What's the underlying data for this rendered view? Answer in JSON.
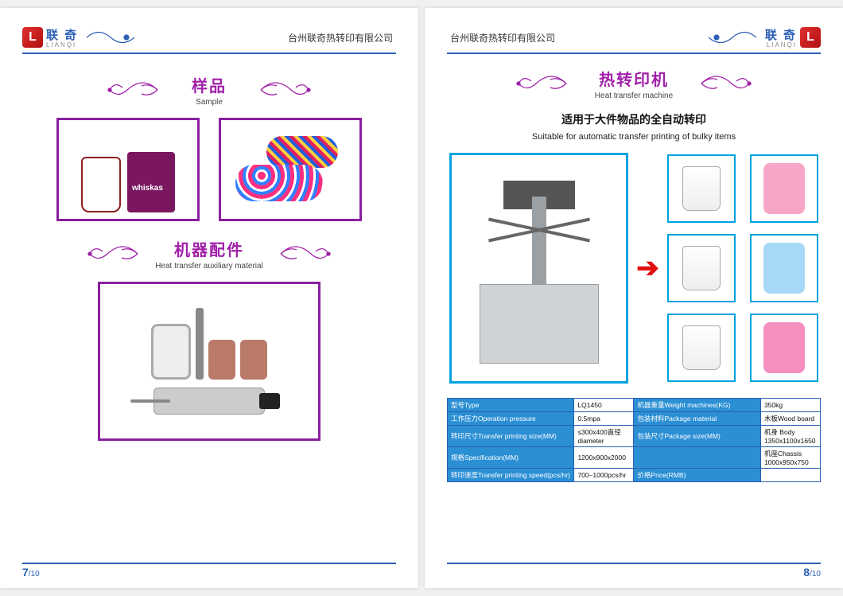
{
  "brand": {
    "logo_letter": "L",
    "name_cn": "联 奇",
    "name_en": "LIANQI"
  },
  "company_name": "台州联奇热转印有限公司",
  "colors": {
    "header_rule": "#2b5fb4",
    "purple_border": "#8a1fa0",
    "purple_text": "#a020a8",
    "cyan_border": "#00a3e0",
    "arrow_red": "#e01010",
    "table_header_bg": "#2b8fd4"
  },
  "page7": {
    "section1": {
      "title_cn": "样品",
      "title_en": "Sample"
    },
    "section2": {
      "title_cn": "机器配件",
      "title_en": "Heat transfer auxiliary material"
    },
    "photos": {
      "sample_left": "cups-and-whiskas-bin",
      "sample_right": "printed-bags",
      "aux_material": "rollers-heater-pneumatic-parts"
    },
    "page_number": "7",
    "page_total": "10"
  },
  "page8": {
    "section": {
      "title_cn": "热转印机",
      "title_en": "Heat transfer machine"
    },
    "subtitle_cn": "适用于大件物品的全自动转印",
    "subtitle_en": "Suitable for automatic transfer printing of bulky items",
    "machine_id": "heat-transfer-machine-LQ1450",
    "output_tiles": [
      {
        "id": "bucket-wrangi",
        "kind": "bucket",
        "color": "#ffffff"
      },
      {
        "id": "raincoat-pink",
        "kind": "raincoat",
        "color": "#f7a6c8"
      },
      {
        "id": "bucket-isaval",
        "kind": "bucket",
        "color": "#ffffff"
      },
      {
        "id": "raincoat-mickey-blue",
        "kind": "raincoat",
        "color": "#a6d8f7"
      },
      {
        "id": "bucket-prima",
        "kind": "bucket",
        "color": "#ffffff"
      },
      {
        "id": "raincoat-pink-pattern",
        "kind": "raincoat",
        "color": "#f48fc0"
      }
    ],
    "spec_table": {
      "rows": [
        {
          "k1": "型号Type",
          "v1": "LQ1450",
          "k2": "机器重量Weight machines(KG)",
          "v2": "350kg"
        },
        {
          "k1": "工作压力Operation pressure",
          "v1": "0.5mpa",
          "k2": "包装材料Package material",
          "v2": "木板Wood board"
        },
        {
          "k1": "转印尺寸Transfer printing size(MM)",
          "v1": "≤300x400直径diameter",
          "k2": "包装尺寸Package size(MM)",
          "v2": "机身 Body 1350x1100x1650"
        },
        {
          "k1": "规格Specification(MM)",
          "v1": "1200x900x2000",
          "k2": "",
          "v2": "机座Chassis 1000x950x750"
        },
        {
          "k1": "转印速度Transfer printing speed(pcs/hr)",
          "v1": "700–1000pcs/hr",
          "k2": "价格Price(RMB)",
          "v2": ""
        }
      ]
    },
    "page_number": "8",
    "page_total": "10"
  }
}
